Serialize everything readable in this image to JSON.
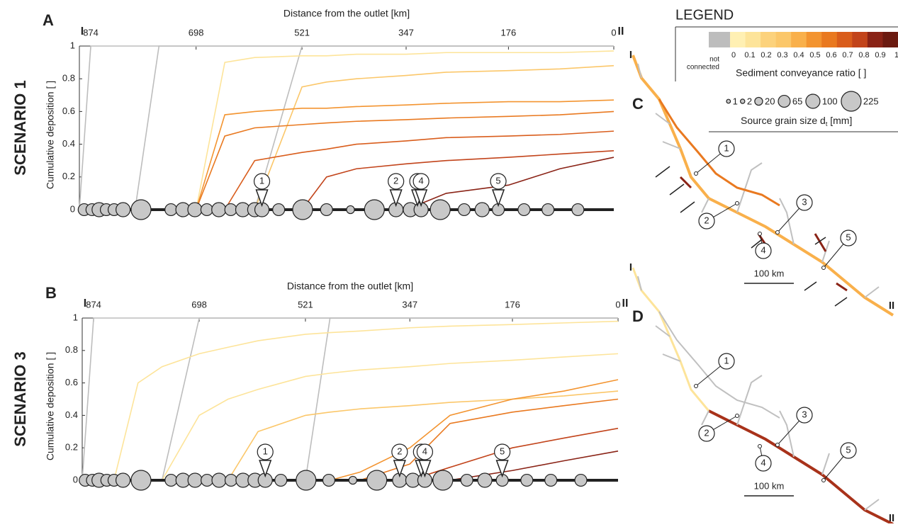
{
  "chart_data": [
    {
      "type": "line",
      "panel": "A",
      "scenario": "SCENARIO 1",
      "xlabel": "Distance from the outlet [km]",
      "ylabel": "Cumulative deposition [ ]",
      "axis_end_labels": [
        "I",
        "II"
      ],
      "xlim": [
        893,
        0
      ],
      "xticks": [
        874,
        698,
        521,
        347,
        176,
        0
      ],
      "ylim": [
        0,
        1
      ],
      "yticks": [
        0,
        0.2,
        0.4,
        0.6,
        0.8,
        1
      ],
      "x": [
        893,
        874,
        840,
        800,
        760,
        698,
        650,
        600,
        521,
        480,
        430,
        347,
        280,
        176,
        90,
        0
      ],
      "series": [
        {
          "color": "#bdbdbd",
          "values": [
            0,
            1,
            1,
            1,
            1,
            1,
            1,
            1,
            1,
            1,
            1,
            1,
            1,
            1,
            1,
            1
          ]
        },
        {
          "color": "#bdbdbd",
          "values": [
            null,
            null,
            null,
            0,
            1,
            1,
            1,
            1,
            1,
            1,
            1,
            1,
            1,
            1,
            1,
            1
          ]
        },
        {
          "color": "#bdbdbd",
          "values": [
            null,
            null,
            null,
            null,
            null,
            null,
            null,
            0,
            1,
            1,
            1,
            1,
            1,
            1,
            1,
            1
          ]
        },
        {
          "color": "#fde49a",
          "values": [
            null,
            null,
            null,
            null,
            null,
            0,
            0.9,
            0.93,
            0.94,
            0.94,
            0.95,
            0.95,
            0.96,
            0.96,
            0.96,
            0.97
          ]
        },
        {
          "color": "#fbc76a",
          "values": [
            null,
            null,
            null,
            null,
            null,
            null,
            null,
            0,
            0.75,
            0.78,
            0.8,
            0.82,
            0.84,
            0.85,
            0.86,
            0.88
          ]
        },
        {
          "color": "#f39430",
          "values": [
            null,
            null,
            null,
            null,
            null,
            0,
            0.58,
            0.6,
            0.62,
            0.62,
            0.63,
            0.64,
            0.65,
            0.66,
            0.66,
            0.67
          ]
        },
        {
          "color": "#e97920",
          "values": [
            null,
            null,
            null,
            null,
            null,
            0,
            0.45,
            0.5,
            0.52,
            0.53,
            0.54,
            0.55,
            0.56,
            0.57,
            0.58,
            0.6
          ]
        },
        {
          "color": "#d95d1c",
          "values": [
            null,
            null,
            null,
            null,
            null,
            null,
            0,
            0.3,
            0.35,
            0.37,
            0.4,
            0.42,
            0.44,
            0.45,
            0.46,
            0.48
          ]
        },
        {
          "color": "#c2441b",
          "values": [
            null,
            null,
            null,
            null,
            null,
            null,
            null,
            null,
            0,
            0.2,
            0.25,
            0.28,
            0.3,
            0.32,
            0.34,
            0.36
          ]
        },
        {
          "color": "#8a2316",
          "values": [
            null,
            null,
            null,
            null,
            null,
            null,
            null,
            null,
            null,
            null,
            null,
            0,
            0.1,
            0.15,
            0.25,
            0.32
          ]
        }
      ],
      "sources": {
        "x": [
          885,
          872,
          860,
          848,
          835,
          820,
          790,
          740,
          720,
          700,
          680,
          660,
          640,
          620,
          600,
          588,
          560,
          520,
          480,
          440,
          400,
          364,
          340,
          322,
          290,
          250,
          220,
          193,
          150,
          110,
          60
        ],
        "grain_size": [
          65,
          65,
          100,
          65,
          65,
          100,
          225,
          65,
          100,
          100,
          65,
          100,
          65,
          100,
          100,
          100,
          65,
          225,
          65,
          20,
          225,
          100,
          100,
          100,
          225,
          65,
          100,
          65,
          65,
          65,
          65
        ]
      },
      "callouts": {
        "labels": [
          "1",
          "2",
          "3",
          "4",
          "5"
        ],
        "x": [
          588,
          364,
          328,
          322,
          193
        ]
      }
    },
    {
      "type": "line",
      "panel": "B",
      "scenario": "SCENARIO 3",
      "xlabel": "Distance from the outlet [km]",
      "ylabel": "Cumulative deposition [ ]",
      "axis_end_labels": [
        "I",
        "II"
      ],
      "xlim": [
        893,
        0
      ],
      "xticks": [
        874,
        698,
        521,
        347,
        176,
        0
      ],
      "ylim": [
        0,
        1
      ],
      "yticks": [
        0,
        0.2,
        0.4,
        0.6,
        0.8,
        1
      ],
      "x": [
        893,
        874,
        840,
        800,
        760,
        698,
        650,
        600,
        521,
        480,
        430,
        347,
        280,
        176,
        90,
        0
      ],
      "series": [
        {
          "color": "#bdbdbd",
          "values": [
            0,
            1,
            1,
            1,
            1,
            1,
            1,
            1,
            1,
            1,
            1,
            1,
            1,
            1,
            1,
            1
          ]
        },
        {
          "color": "#bdbdbd",
          "values": [
            null,
            null,
            null,
            null,
            0,
            1,
            1,
            1,
            1,
            1,
            1,
            1,
            1,
            1,
            1,
            1
          ]
        },
        {
          "color": "#bdbdbd",
          "values": [
            null,
            null,
            null,
            null,
            null,
            null,
            null,
            null,
            0,
            1,
            1,
            1,
            1,
            1,
            1,
            1
          ]
        },
        {
          "color": "#fde49a",
          "values": [
            null,
            null,
            0,
            0.6,
            0.7,
            0.78,
            0.82,
            0.86,
            0.9,
            0.91,
            0.92,
            0.94,
            0.95,
            0.96,
            0.97,
            0.98
          ]
        },
        {
          "color": "#fde49a",
          "values": [
            null,
            null,
            null,
            null,
            0,
            0.4,
            0.5,
            0.56,
            0.64,
            0.66,
            0.68,
            0.7,
            0.72,
            0.74,
            0.76,
            0.78
          ]
        },
        {
          "color": "#fbc76a",
          "values": [
            null,
            null,
            null,
            null,
            null,
            null,
            0,
            0.3,
            0.4,
            0.42,
            0.44,
            0.46,
            0.48,
            0.5,
            0.52,
            0.55
          ]
        },
        {
          "color": "#f39430",
          "values": [
            null,
            null,
            null,
            null,
            null,
            null,
            null,
            null,
            null,
            0,
            0.05,
            0.2,
            0.4,
            0.5,
            0.55,
            0.62
          ]
        },
        {
          "color": "#e97920",
          "values": [
            null,
            null,
            null,
            null,
            null,
            null,
            null,
            null,
            null,
            null,
            0,
            0.1,
            0.35,
            0.42,
            0.46,
            0.5
          ]
        },
        {
          "color": "#c2441b",
          "values": [
            null,
            null,
            null,
            null,
            null,
            null,
            null,
            null,
            null,
            null,
            null,
            0,
            0.08,
            0.2,
            0.26,
            0.32
          ]
        },
        {
          "color": "#8a2316",
          "values": [
            null,
            null,
            null,
            null,
            null,
            null,
            null,
            null,
            null,
            null,
            null,
            null,
            0,
            0.06,
            0.12,
            0.18
          ]
        }
      ],
      "sources": {
        "x": [
          888,
          876,
          865,
          852,
          840,
          825,
          795,
          745,
          725,
          705,
          685,
          665,
          645,
          625,
          605,
          588,
          562,
          520,
          482,
          442,
          402,
          364,
          342,
          322,
          292,
          252,
          222,
          193,
          152,
          112,
          62
        ],
        "grain_size": [
          65,
          65,
          100,
          65,
          65,
          100,
          225,
          65,
          100,
          100,
          65,
          100,
          65,
          100,
          100,
          100,
          65,
          225,
          65,
          20,
          225,
          100,
          100,
          100,
          225,
          65,
          100,
          65,
          65,
          65,
          65
        ]
      },
      "callouts": {
        "labels": [
          "1",
          "2",
          "3",
          "4",
          "5"
        ],
        "x": [
          588,
          364,
          328,
          322,
          193
        ]
      }
    }
  ],
  "legend": {
    "title": "LEGEND",
    "not_connected": [
      "not",
      "connected"
    ],
    "ratio_colors": [
      "#bdbdbd",
      "#fff0b3",
      "#fde49a",
      "#fcd27c",
      "#fbc76a",
      "#f9b04b",
      "#f39430",
      "#e97920",
      "#d95d1c",
      "#c2441b",
      "#8a2316",
      "#6b1a10"
    ],
    "ratio_ticks": [
      0,
      0.1,
      0.2,
      0.3,
      0.4,
      0.5,
      0.6,
      0.7,
      0.8,
      0.9,
      1
    ],
    "ratio_label": "Sediment conveyance ratio [ ]",
    "grain_sizes": [
      1,
      2,
      20,
      65,
      100,
      225
    ],
    "size_label": "Source grain size d",
    "size_label_sub": "t",
    "size_label_unit": " [mm]"
  },
  "maps": [
    {
      "label": "C",
      "scale": "100 km",
      "callouts": [
        "1",
        "2",
        "3",
        "4",
        "5"
      ],
      "ends": [
        "I",
        "II"
      ]
    },
    {
      "label": "D",
      "scale": "100 km",
      "callouts": [
        "1",
        "2",
        "3",
        "4",
        "5"
      ],
      "ends": [
        "I",
        "II"
      ]
    }
  ]
}
